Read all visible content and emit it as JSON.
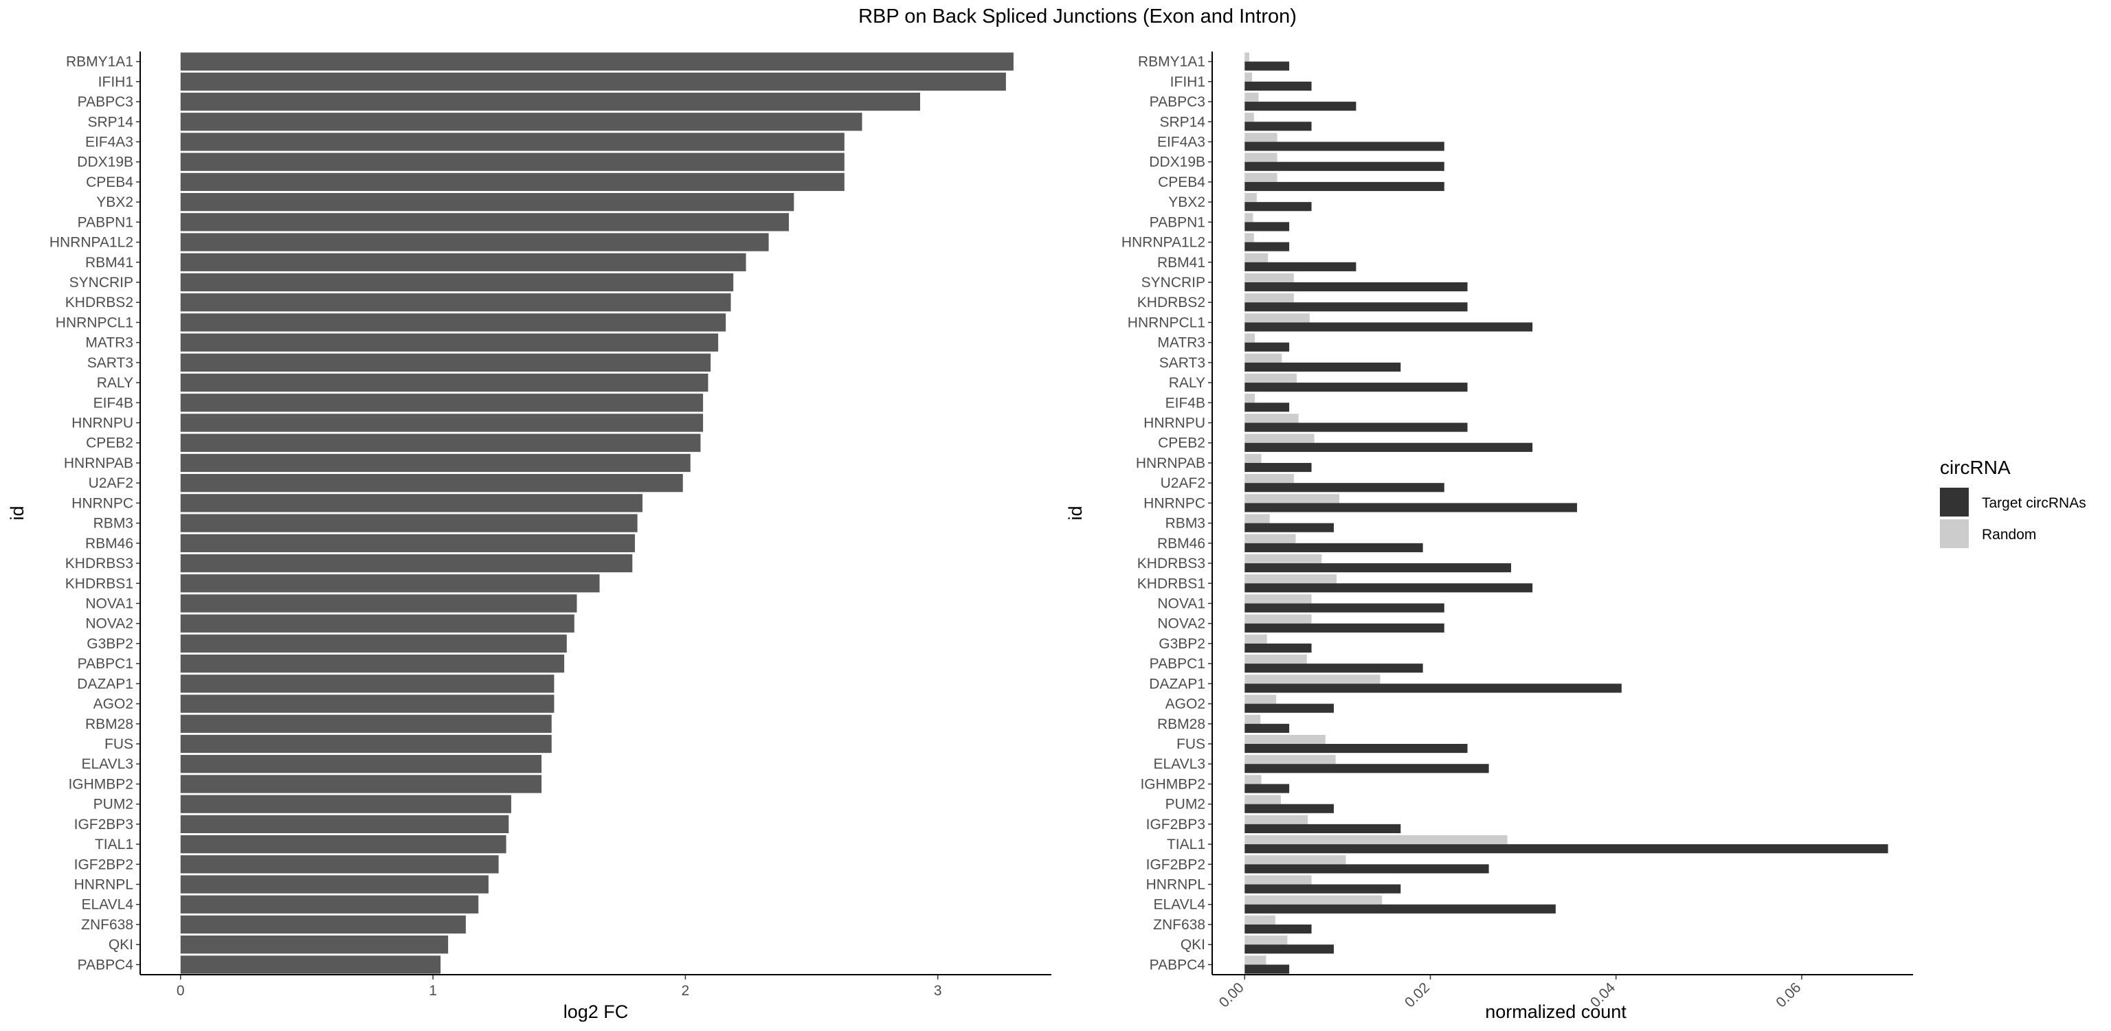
{
  "title": "RBP on Back Spliced Junctions (Exon and Intron)",
  "colors": {
    "bar": "#595959",
    "target": "#333333",
    "random": "#cccccc",
    "axis": "#000000",
    "tick_text": "#4d4d4d"
  },
  "chart_data": [
    {
      "type": "bar",
      "orientation": "horizontal",
      "xlabel": "log2 FC",
      "ylabel": "id",
      "xlim": [
        -0.16,
        3.45
      ],
      "xticks": [
        0,
        1,
        2,
        3
      ],
      "xtick_labels": [
        "0",
        "1",
        "2",
        "3"
      ],
      "grid": false,
      "categories": [
        "RBMY1A1",
        "IFIH1",
        "PABPC3",
        "SRP14",
        "EIF4A3",
        "DDX19B",
        "CPEB4",
        "YBX2",
        "PABPN1",
        "HNRNPA1L2",
        "RBM41",
        "SYNCRIP",
        "KHDRBS2",
        "HNRNPCL1",
        "MATR3",
        "SART3",
        "RALY",
        "EIF4B",
        "HNRNPU",
        "CPEB2",
        "HNRNPAB",
        "U2AF2",
        "HNRNPC",
        "RBM3",
        "RBM46",
        "KHDRBS3",
        "KHDRBS1",
        "NOVA1",
        "NOVA2",
        "G3BP2",
        "PABPC1",
        "DAZAP1",
        "AGO2",
        "RBM28",
        "FUS",
        "ELAVL3",
        "IGHMBP2",
        "PUM2",
        "IGF2BP3",
        "TIAL1",
        "IGF2BP2",
        "HNRNPL",
        "ELAVL4",
        "ZNF638",
        "QKI",
        "PABPC4"
      ],
      "values": [
        3.3,
        3.27,
        2.93,
        2.7,
        2.63,
        2.63,
        2.63,
        2.43,
        2.41,
        2.33,
        2.24,
        2.19,
        2.18,
        2.16,
        2.13,
        2.1,
        2.09,
        2.07,
        2.07,
        2.06,
        2.02,
        1.99,
        1.83,
        1.81,
        1.8,
        1.79,
        1.66,
        1.57,
        1.56,
        1.53,
        1.52,
        1.48,
        1.48,
        1.47,
        1.47,
        1.43,
        1.43,
        1.31,
        1.3,
        1.29,
        1.26,
        1.22,
        1.18,
        1.13,
        1.06,
        1.03
      ]
    },
    {
      "type": "bar",
      "orientation": "horizontal",
      "grouped": true,
      "xlabel": "normalized count",
      "ylabel": "id",
      "xlim": [
        -0.0035,
        0.072
      ],
      "xticks": [
        0,
        0.02,
        0.04,
        0.06
      ],
      "xtick_labels": [
        "0.00",
        "0.02",
        "0.04",
        "0.06"
      ],
      "grid": false,
      "legend": {
        "title": "circRNA",
        "position": "right"
      },
      "categories": [
        "RBMY1A1",
        "IFIH1",
        "PABPC3",
        "SRP14",
        "EIF4A3",
        "DDX19B",
        "CPEB4",
        "YBX2",
        "PABPN1",
        "HNRNPA1L2",
        "RBM41",
        "SYNCRIP",
        "KHDRBS2",
        "HNRNPCL1",
        "MATR3",
        "SART3",
        "RALY",
        "EIF4B",
        "HNRNPU",
        "CPEB2",
        "HNRNPAB",
        "U2AF2",
        "HNRNPC",
        "RBM3",
        "RBM46",
        "KHDRBS3",
        "KHDRBS1",
        "NOVA1",
        "NOVA2",
        "G3BP2",
        "PABPC1",
        "DAZAP1",
        "AGO2",
        "RBM28",
        "FUS",
        "ELAVL3",
        "IGHMBP2",
        "PUM2",
        "IGF2BP3",
        "TIAL1",
        "IGF2BP2",
        "HNRNPL",
        "ELAVL4",
        "ZNF638",
        "QKI",
        "PABPC4"
      ],
      "series": [
        {
          "name": "Target circRNAs",
          "color": "#333333",
          "values": [
            0.0048,
            0.0072,
            0.012,
            0.0072,
            0.0215,
            0.0215,
            0.0215,
            0.0072,
            0.0048,
            0.0048,
            0.012,
            0.024,
            0.024,
            0.031,
            0.0048,
            0.0168,
            0.024,
            0.0048,
            0.024,
            0.031,
            0.0072,
            0.0215,
            0.0358,
            0.0096,
            0.0192,
            0.0287,
            0.031,
            0.0215,
            0.0215,
            0.0072,
            0.0192,
            0.0406,
            0.0096,
            0.0048,
            0.024,
            0.0263,
            0.0048,
            0.0096,
            0.0168,
            0.0693,
            0.0263,
            0.0168,
            0.0335,
            0.0072,
            0.0096,
            0.0048
          ]
        },
        {
          "name": "Random",
          "color": "#cccccc",
          "values": [
            0.0005,
            0.0008,
            0.0015,
            0.001,
            0.0035,
            0.0035,
            0.0035,
            0.0013,
            0.0009,
            0.001,
            0.0025,
            0.0053,
            0.0053,
            0.007,
            0.0011,
            0.004,
            0.0056,
            0.0011,
            0.0058,
            0.0075,
            0.0018,
            0.0053,
            0.0102,
            0.0027,
            0.0055,
            0.0083,
            0.0099,
            0.0072,
            0.0072,
            0.0024,
            0.0067,
            0.0146,
            0.0034,
            0.0017,
            0.0087,
            0.0098,
            0.0018,
            0.0039,
            0.0068,
            0.0283,
            0.0109,
            0.0072,
            0.0148,
            0.0033,
            0.0046,
            0.0023
          ]
        }
      ]
    }
  ]
}
